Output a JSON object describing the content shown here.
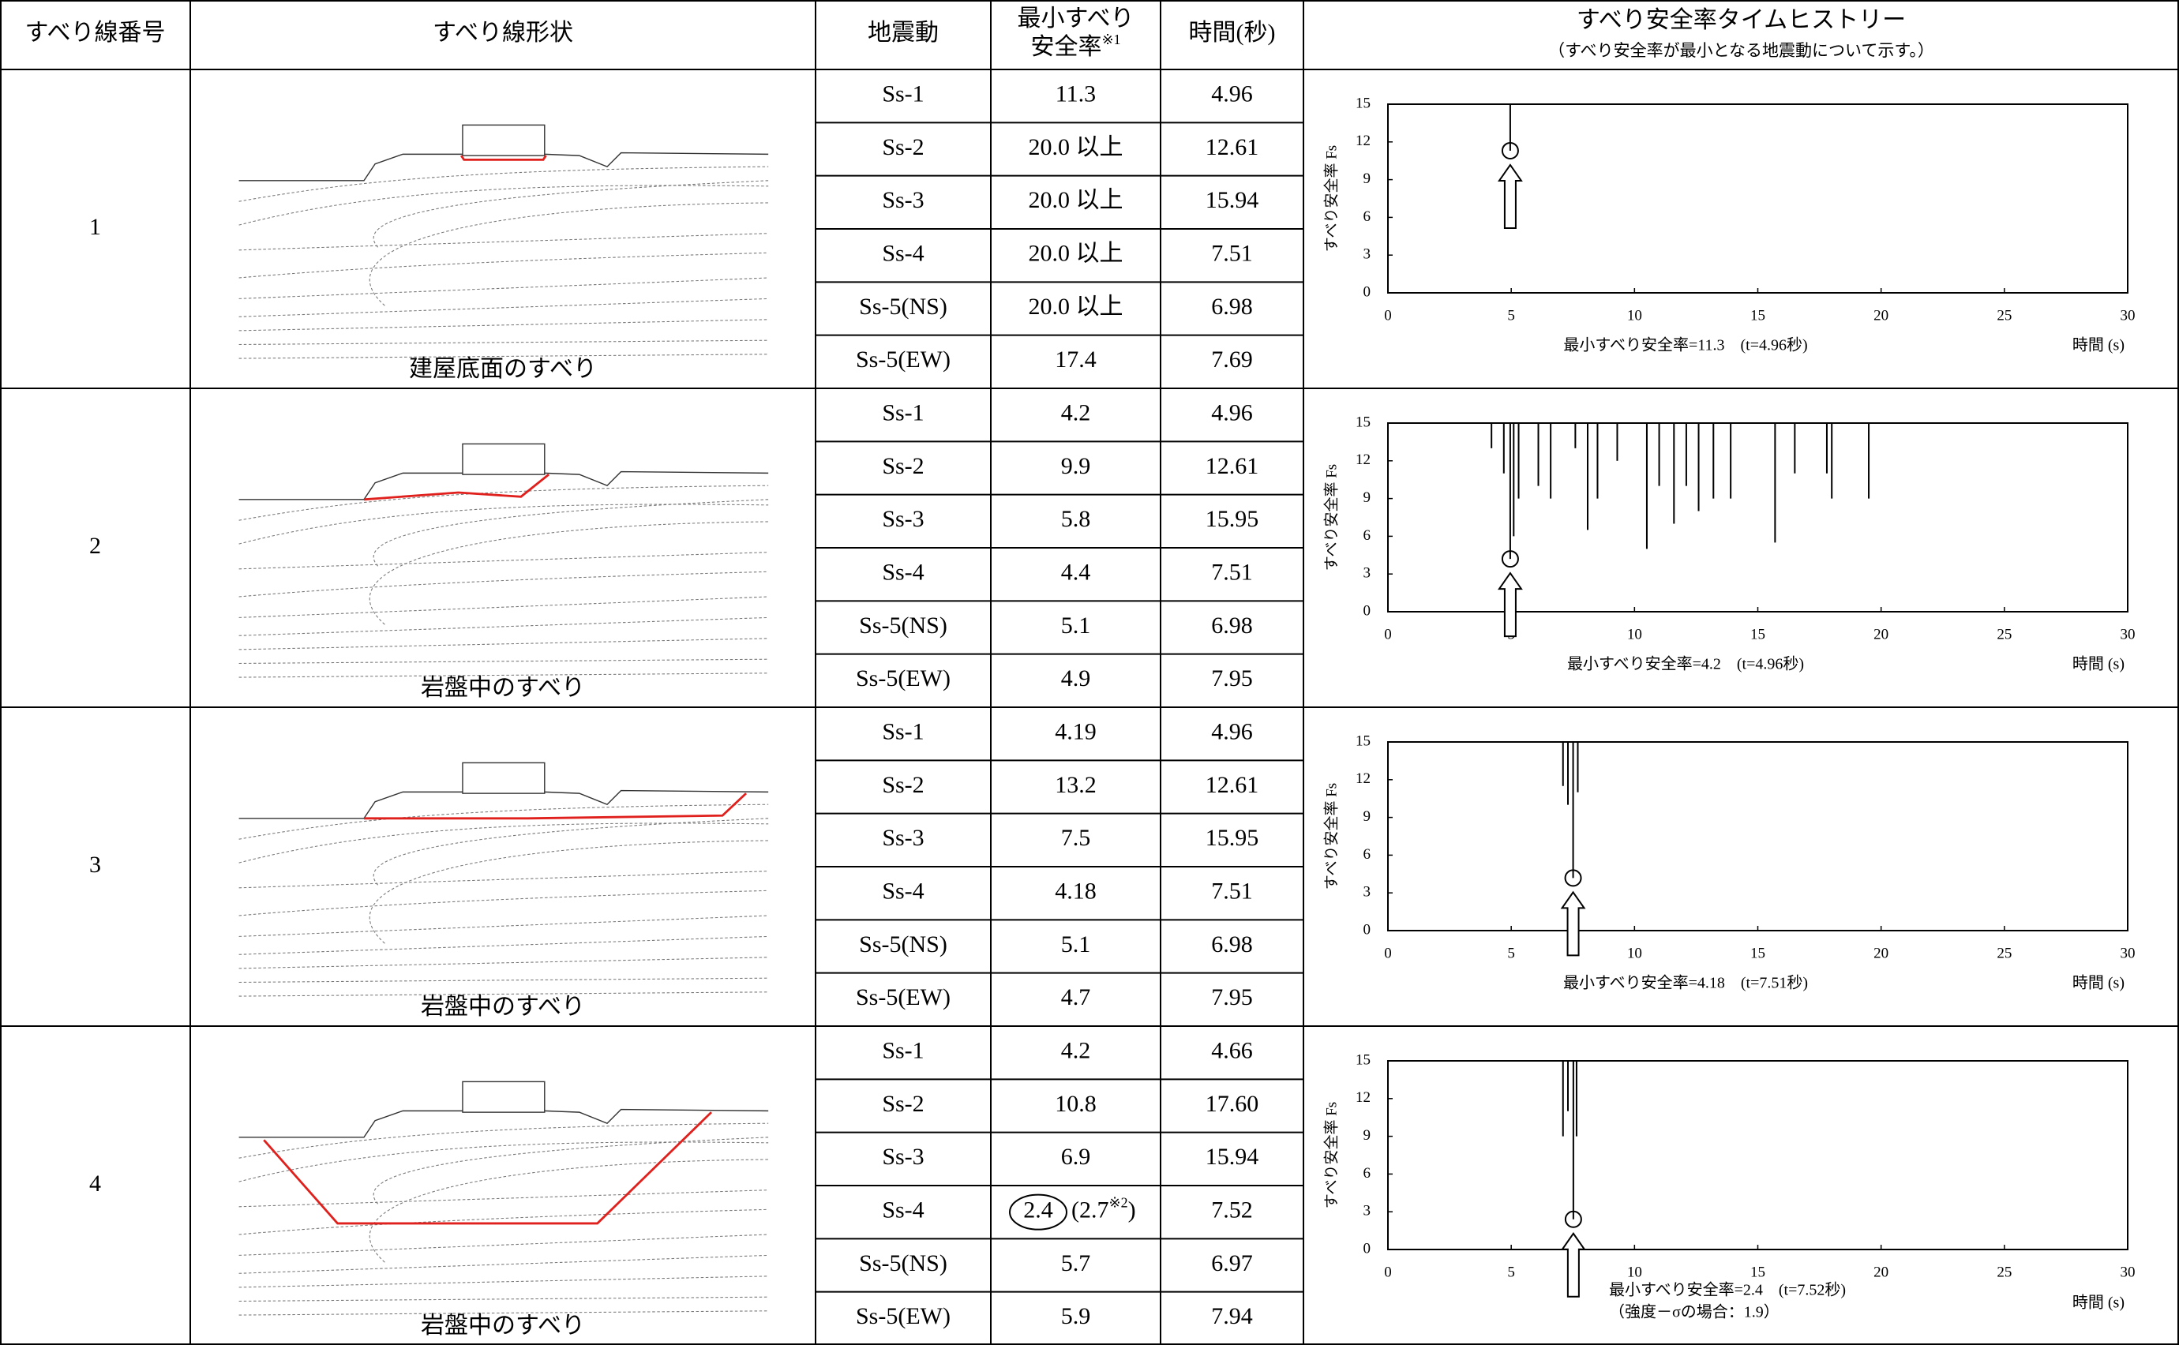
{
  "header": {
    "number": "すべり線番号",
    "shape": "すべり線形状",
    "motion": "地震動",
    "fs_line1": "最小すべり",
    "fs_line2": "安全率",
    "fs_note": "※1",
    "time": "時間(秒)",
    "chart_title": "すべり安全率タイムヒストリー",
    "chart_subtitle": "（すべり安全率が最小となる地震動について示す。）"
  },
  "rows": [
    {
      "number": "1",
      "shape_caption": "建屋底面のすべり",
      "motions": [
        {
          "name": "Ss-1",
          "fs": "11.3",
          "time": "4.96"
        },
        {
          "name": "Ss-2",
          "fs": "20.0 以上",
          "time": "12.61"
        },
        {
          "name": "Ss-3",
          "fs": "20.0 以上",
          "time": "15.94"
        },
        {
          "name": "Ss-4",
          "fs": "20.0 以上",
          "time": "7.51"
        },
        {
          "name": "Ss-5(NS)",
          "fs": "20.0 以上",
          "time": "6.98"
        },
        {
          "name": "Ss-5(EW)",
          "fs": "17.4",
          "time": "7.69"
        }
      ],
      "chart": {
        "ylabel": "すべり安全率 Fs",
        "xlabel": "時間 (s)",
        "caption": "最小すべり安全率=11.3　(t=4.96秒)",
        "xlim": [
          0,
          30
        ],
        "ylim": [
          0,
          15
        ],
        "xticks": [
          0,
          5,
          10,
          15,
          20,
          25,
          30
        ],
        "yticks": [
          0,
          3,
          6,
          9,
          12,
          15
        ],
        "min_point": {
          "x": 4.96,
          "y": 11.3
        },
        "spikes": [
          {
            "x": 4.96,
            "y": 11.3
          }
        ]
      }
    },
    {
      "number": "2",
      "shape_caption": "岩盤中のすべり",
      "motions": [
        {
          "name": "Ss-1",
          "fs": "4.2",
          "time": "4.96"
        },
        {
          "name": "Ss-2",
          "fs": "9.9",
          "time": "12.61"
        },
        {
          "name": "Ss-3",
          "fs": "5.8",
          "time": "15.95"
        },
        {
          "name": "Ss-4",
          "fs": "4.4",
          "time": "7.51"
        },
        {
          "name": "Ss-5(NS)",
          "fs": "5.1",
          "time": "6.98"
        },
        {
          "name": "Ss-5(EW)",
          "fs": "4.9",
          "time": "7.95"
        }
      ],
      "chart": {
        "ylabel": "すべり安全率 Fs",
        "xlabel": "時間 (s)",
        "caption": "最小すべり安全率=4.2　(t=4.96秒)",
        "xlim": [
          0,
          30
        ],
        "ylim": [
          0,
          15
        ],
        "xticks": [
          0,
          5,
          10,
          15,
          20,
          25,
          30
        ],
        "yticks": [
          0,
          3,
          6,
          9,
          12,
          15
        ],
        "min_point": {
          "x": 4.96,
          "y": 4.2
        },
        "spikes": [
          {
            "x": 4.2,
            "y": 13
          },
          {
            "x": 4.7,
            "y": 11
          },
          {
            "x": 4.96,
            "y": 4.2
          },
          {
            "x": 5.1,
            "y": 6
          },
          {
            "x": 5.3,
            "y": 9
          },
          {
            "x": 6.1,
            "y": 10
          },
          {
            "x": 6.6,
            "y": 9
          },
          {
            "x": 7.6,
            "y": 13
          },
          {
            "x": 8.1,
            "y": 6.5
          },
          {
            "x": 8.5,
            "y": 9
          },
          {
            "x": 9.3,
            "y": 12
          },
          {
            "x": 10.5,
            "y": 5
          },
          {
            "x": 11.0,
            "y": 10
          },
          {
            "x": 11.6,
            "y": 7
          },
          {
            "x": 12.1,
            "y": 10
          },
          {
            "x": 12.6,
            "y": 8
          },
          {
            "x": 13.2,
            "y": 9
          },
          {
            "x": 13.9,
            "y": 9
          },
          {
            "x": 15.7,
            "y": 5.5
          },
          {
            "x": 16.5,
            "y": 11
          },
          {
            "x": 17.8,
            "y": 11
          },
          {
            "x": 18.0,
            "y": 9
          },
          {
            "x": 19.5,
            "y": 9
          }
        ]
      }
    },
    {
      "number": "3",
      "shape_caption": "岩盤中のすべり",
      "motions": [
        {
          "name": "Ss-1",
          "fs": "4.19",
          "time": "4.96"
        },
        {
          "name": "Ss-2",
          "fs": "13.2",
          "time": "12.61"
        },
        {
          "name": "Ss-3",
          "fs": "7.5",
          "time": "15.95"
        },
        {
          "name": "Ss-4",
          "fs": "4.18",
          "time": "7.51"
        },
        {
          "name": "Ss-5(NS)",
          "fs": "5.1",
          "time": "6.98"
        },
        {
          "name": "Ss-5(EW)",
          "fs": "4.7",
          "time": "7.95"
        }
      ],
      "chart": {
        "ylabel": "すべり安全率 Fs",
        "xlabel": "時間 (s)",
        "caption": "最小すべり安全率=4.18　(t=7.51秒)",
        "xlim": [
          0,
          30
        ],
        "ylim": [
          0,
          15
        ],
        "xticks": [
          0,
          5,
          10,
          15,
          20,
          25,
          30
        ],
        "yticks": [
          0,
          3,
          6,
          9,
          12,
          15
        ],
        "min_point": {
          "x": 7.51,
          "y": 4.18
        },
        "spikes": [
          {
            "x": 7.1,
            "y": 11.5
          },
          {
            "x": 7.3,
            "y": 10
          },
          {
            "x": 7.51,
            "y": 4.18
          },
          {
            "x": 7.7,
            "y": 11
          }
        ]
      }
    },
    {
      "number": "4",
      "shape_caption": "岩盤中のすべり",
      "motions": [
        {
          "name": "Ss-1",
          "fs": "4.2",
          "time": "4.66"
        },
        {
          "name": "Ss-2",
          "fs": "10.8",
          "time": "17.60"
        },
        {
          "name": "Ss-3",
          "fs": "6.9",
          "time": "15.94"
        },
        {
          "name": "Ss-4",
          "fs": "2.4",
          "time": "7.52",
          "fs_alt": {
            "open": "(2.7",
            "mark": "※2",
            "close": ")"
          }
        },
        {
          "name": "Ss-5(NS)",
          "fs": "5.7",
          "time": "6.97"
        },
        {
          "name": "Ss-5(EW)",
          "fs": "5.9",
          "time": "7.94"
        }
      ],
      "chart": {
        "ylabel": "すべり安全率 Fs",
        "xlabel": "時間 (s)",
        "caption": "最小すべり安全率=2.4　(t=7.52秒)",
        "caption2": "（強度－σの場合：1.9）",
        "xlim": [
          0,
          30
        ],
        "ylim": [
          0,
          15
        ],
        "xticks": [
          0,
          5,
          10,
          15,
          20,
          25,
          30
        ],
        "yticks": [
          0,
          3,
          6,
          9,
          12,
          15
        ],
        "min_point": {
          "x": 7.52,
          "y": 2.4
        },
        "spikes": [
          {
            "x": 7.1,
            "y": 9
          },
          {
            "x": 7.3,
            "y": 11
          },
          {
            "x": 7.52,
            "y": 2.4
          },
          {
            "x": 7.65,
            "y": 9
          }
        ]
      }
    }
  ]
}
